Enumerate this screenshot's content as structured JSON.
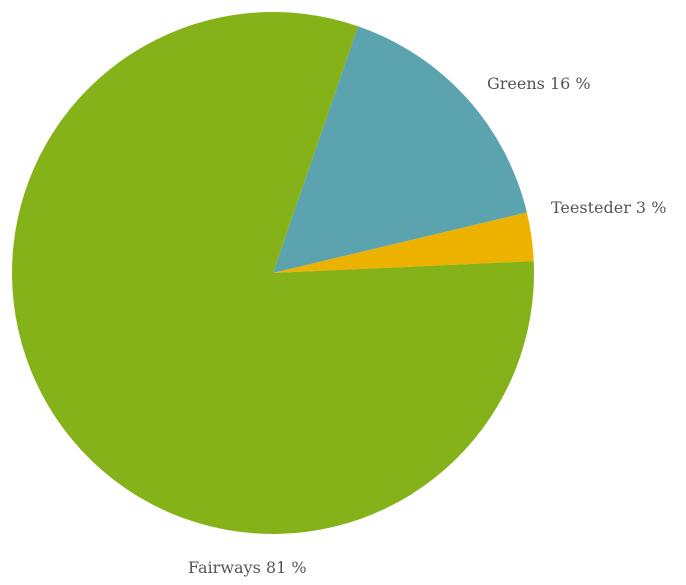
{
  "chart_data": {
    "type": "pie",
    "title": "",
    "slices": [
      {
        "label": "Greens",
        "value": 16,
        "display": "Greens 16 %",
        "color": "#5BA3AF"
      },
      {
        "label": "Teesteder",
        "value": 3,
        "display": "Teesteder 3 %",
        "color": "#EDB100"
      },
      {
        "label": "Fairways",
        "value": 81,
        "display": "Fairways 81 %",
        "color": "#84B218"
      }
    ]
  }
}
